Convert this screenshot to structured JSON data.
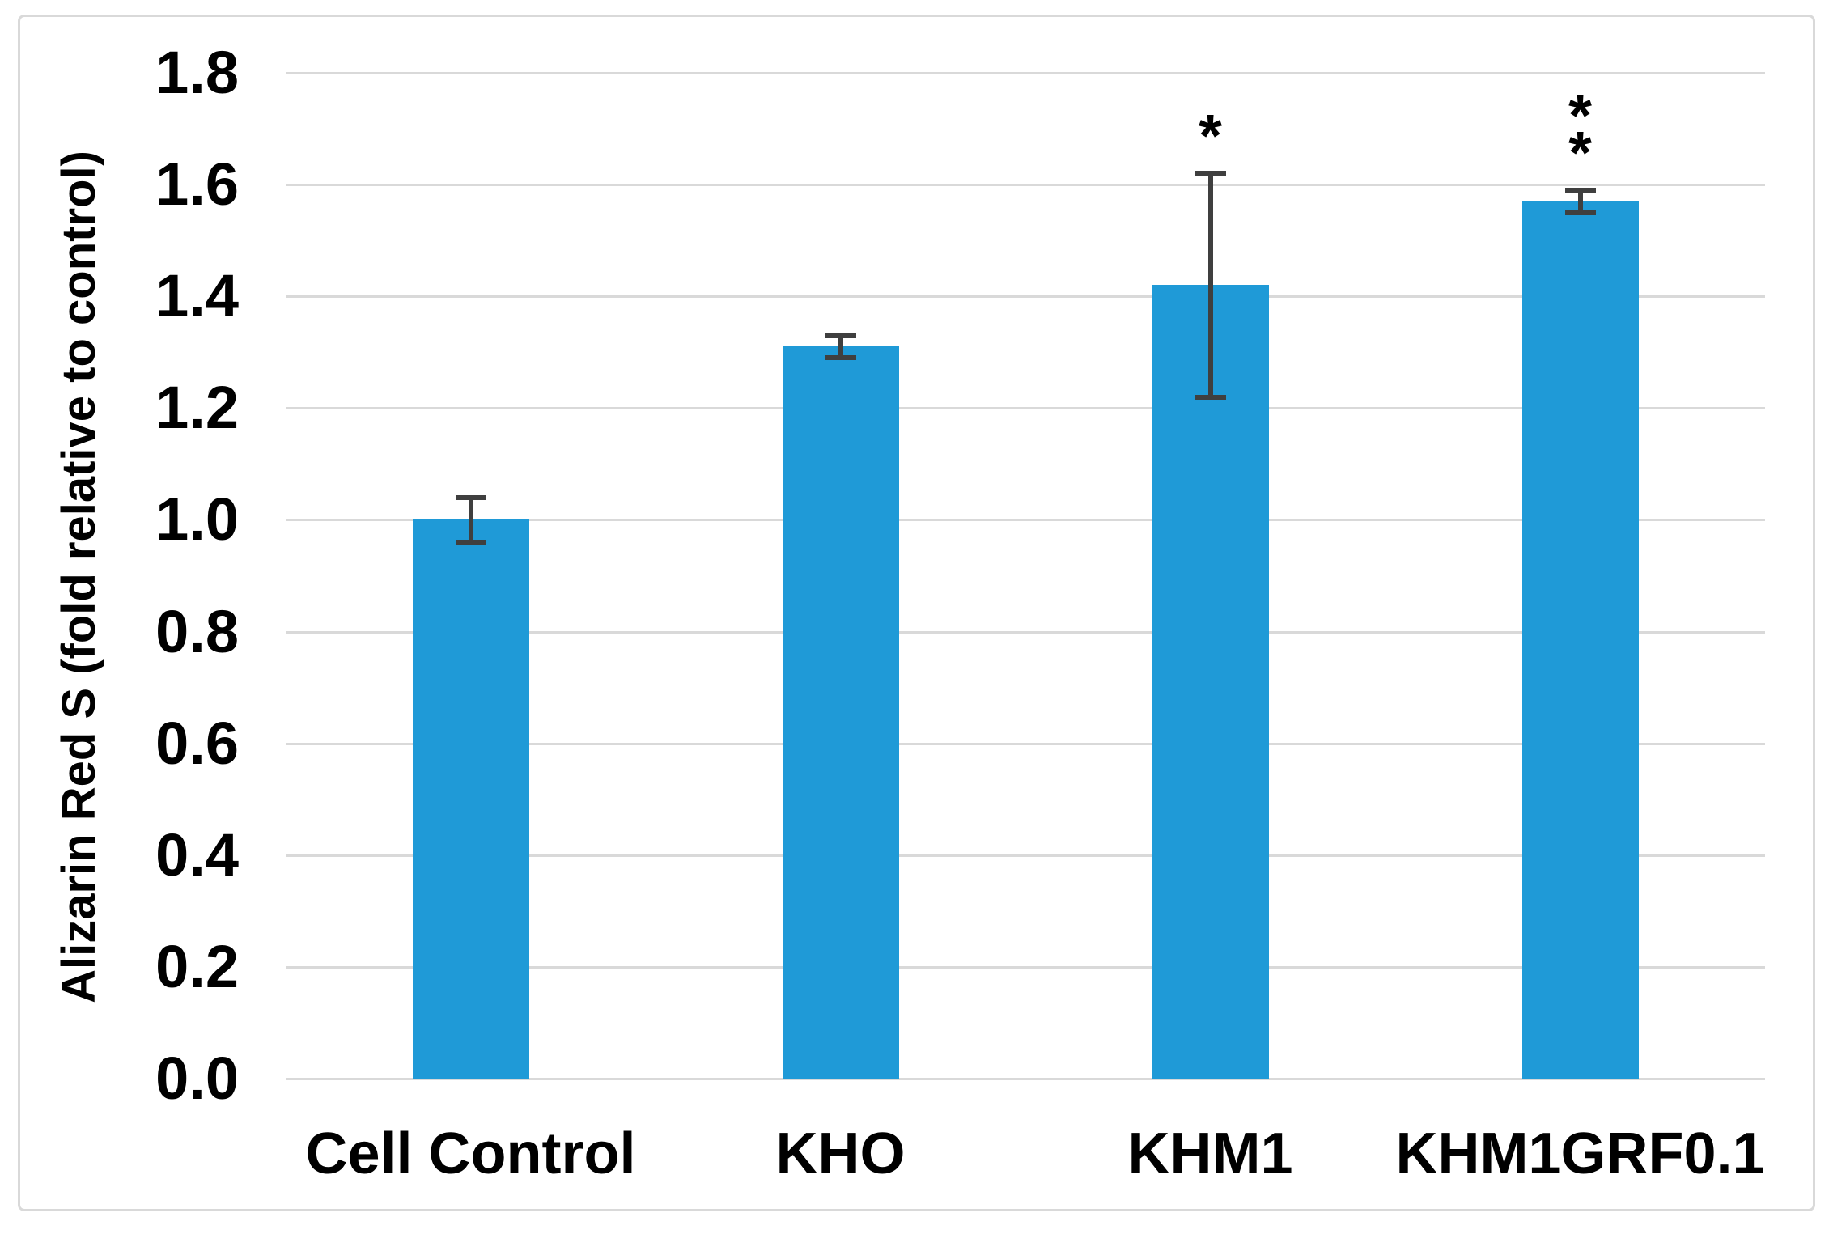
{
  "chart_data": {
    "type": "bar",
    "title": "",
    "categories": [
      "Cell Control",
      "KHO",
      "KHM1",
      "KHM1GRF0.1"
    ],
    "values": [
      1.0,
      1.31,
      1.42,
      1.57
    ],
    "error_up": [
      0.04,
      0.02,
      0.2,
      0.02
    ],
    "error_down": [
      0.04,
      0.02,
      0.2,
      0.02
    ],
    "significance": [
      "",
      "",
      "*",
      "**"
    ],
    "xlabel": "",
    "ylabel": "Alizarin Red S (fold relative to control)",
    "ylim": [
      0,
      1.8
    ],
    "ytick_step": 0.2,
    "ytick_labels": [
      "0.0",
      "0.2",
      "0.4",
      "0.6",
      "0.8",
      "1.0",
      "1.2",
      "1.4",
      "1.6",
      "1.8"
    ],
    "grid": true,
    "legend_position": "none"
  },
  "colors": {
    "bar": "#1F9AD7",
    "error_bar": "#3F3F3F",
    "gridline": "#D9D9D9",
    "frame_border": "#D9D9D9",
    "text": "#000000",
    "background": "#FFFFFF"
  }
}
